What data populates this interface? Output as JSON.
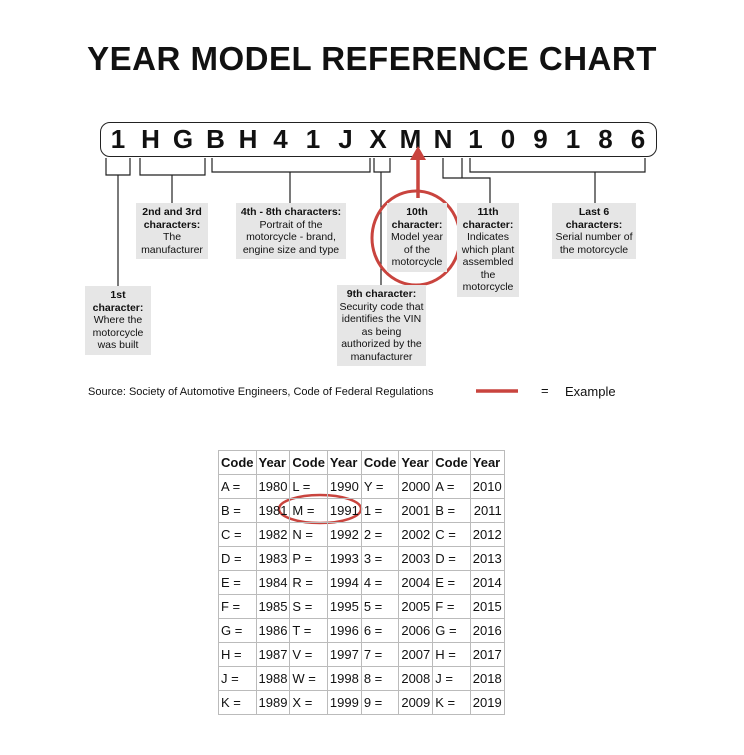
{
  "title": "YEAR MODEL REFERENCE CHART",
  "vin": [
    "1",
    "H",
    "G",
    "B",
    "H",
    "4",
    "1",
    "J",
    "X",
    "M",
    "N",
    "1",
    "0",
    "9",
    "1",
    "8",
    "6"
  ],
  "labels": {
    "c1": {
      "head": "1st character:",
      "body": "Where the motorcycle was built"
    },
    "c23": {
      "head": "2nd and 3rd characters:",
      "body": "The manufacturer"
    },
    "c48": {
      "head": "4th - 8th characters:",
      "body": "Portrait of the motorcycle - brand, engine size and type"
    },
    "c9": {
      "head": "9th character:",
      "body": "Security code that identifies the VIN as being authorized by the manufacturer"
    },
    "c10": {
      "head": "10th character:",
      "body": "Model year of the motorcycle"
    },
    "c11": {
      "head": "11th character:",
      "body": "Indicates which plant assembled the motorcycle"
    },
    "last6": {
      "head": "Last 6 characters:",
      "body": "Serial number of the motorcycle"
    }
  },
  "source": "Source:  Society of Automotive Engineers, Code of Federal Regulations",
  "legend": {
    "eq": "=",
    "label": "Example",
    "color": "#c9443e"
  },
  "table": {
    "headers": [
      "Code",
      "Year",
      "Code",
      "Year",
      "Code",
      "Year",
      "Code",
      "Year"
    ],
    "rows": [
      [
        "A =",
        "1980",
        "L =",
        "1990",
        "Y =",
        "2000",
        "A =",
        "2010"
      ],
      [
        "B =",
        "1981",
        "M =",
        "1991",
        "1 =",
        "2001",
        "B =",
        "2011"
      ],
      [
        "C =",
        "1982",
        "N =",
        "1992",
        "2 =",
        "2002",
        "C =",
        "2012"
      ],
      [
        "D =",
        "1983",
        "P =",
        "1993",
        "3 =",
        "2003",
        "D =",
        "2013"
      ],
      [
        "E =",
        "1984",
        "R =",
        "1994",
        "4 =",
        "2004",
        "E =",
        "2014"
      ],
      [
        "F =",
        "1985",
        "S =",
        "1995",
        "5 =",
        "2005",
        "F =",
        "2015"
      ],
      [
        "G =",
        "1986",
        "T =",
        "1996",
        "6 =",
        "2006",
        "G =",
        "2016"
      ],
      [
        "H =",
        "1987",
        "V =",
        "1997",
        "7 =",
        "2007",
        "H =",
        "2017"
      ],
      [
        "J =",
        "1988",
        "W =",
        "1998",
        "8 =",
        "2008",
        "J =",
        "2018"
      ],
      [
        "K =",
        "1989",
        "X =",
        "1999",
        "9 =",
        "2009",
        "K =",
        "2019"
      ]
    ]
  }
}
